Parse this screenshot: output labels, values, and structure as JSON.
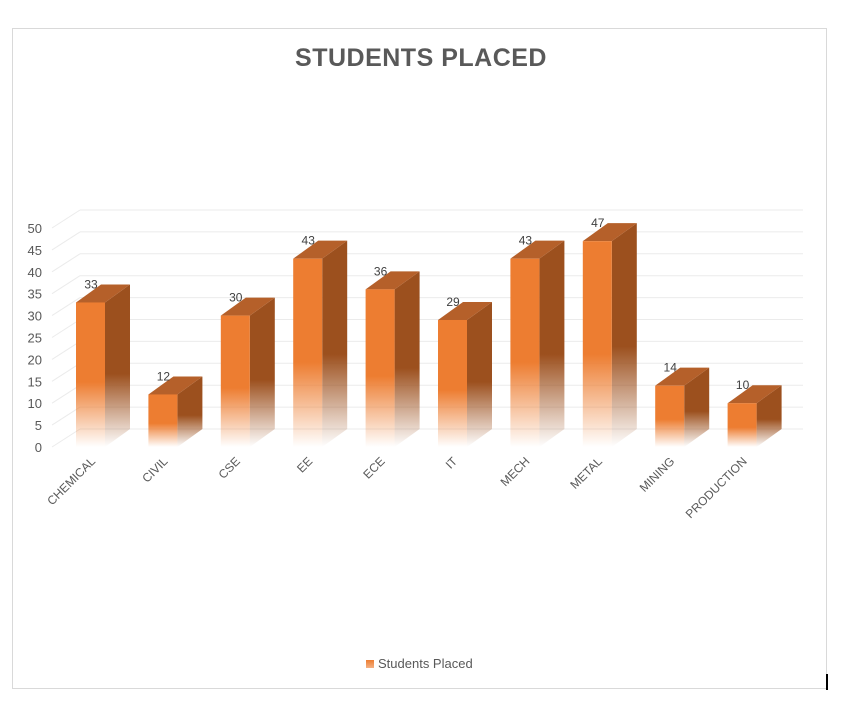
{
  "chart_data": {
    "type": "bar",
    "subtype": "3d-column",
    "title": "STUDENTS PLACED",
    "xlabel": "",
    "ylabel": "",
    "categories": [
      "CHEMICAL",
      "CIVIL",
      "CSE",
      "EE",
      "ECE",
      "IT",
      "MECH",
      "METAL",
      "MINING",
      "PRODUCTION"
    ],
    "series": [
      {
        "name": "Students Placed",
        "values": [
          33,
          12,
          30,
          43,
          36,
          29,
          43,
          47,
          14,
          10
        ],
        "color": "#ed7d31"
      }
    ],
    "data_labels": true,
    "ylim": [
      0,
      50
    ],
    "yticks": [
      0,
      5,
      10,
      15,
      20,
      25,
      30,
      35,
      40,
      45,
      50
    ],
    "grid": true,
    "legend_position": "bottom"
  },
  "legend": {
    "label": "Students Placed"
  },
  "colors": {
    "bar_front": "#ed7d31",
    "bar_side": "#a0521f",
    "bar_top": "#b9622a",
    "text": "#595959",
    "grid": "#ebebeb"
  }
}
